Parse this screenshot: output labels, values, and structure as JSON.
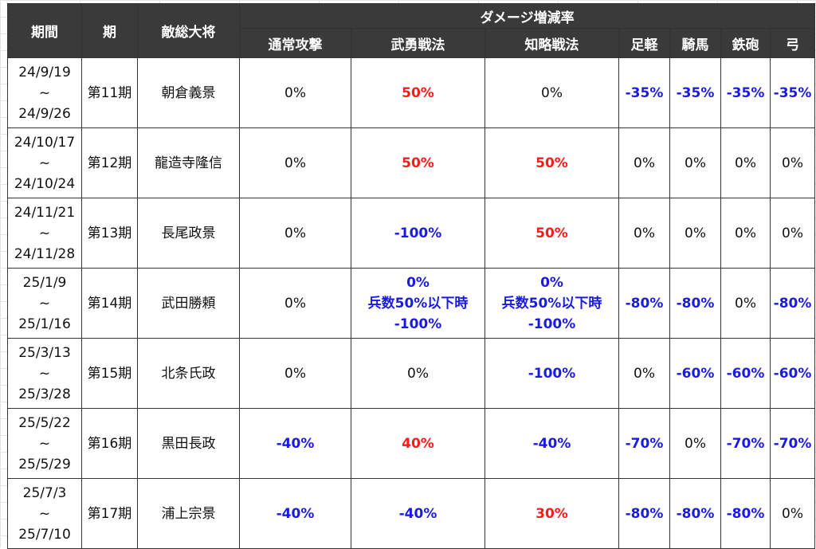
{
  "headers": {
    "period": "期間",
    "term": "期",
    "general": "敵総大将",
    "group": "ダメージ増減率",
    "cols": [
      "通常攻撃",
      "武勇戦法",
      "知略戦法",
      "足軽",
      "騎馬",
      "鉄砲",
      "弓"
    ]
  },
  "rows": [
    {
      "date_start": "24/9/19",
      "date_sep": "~",
      "date_end": "24/9/26",
      "term": "第11期",
      "general": "朝倉義景",
      "cells": [
        {
          "lines": [
            "0%"
          ],
          "color": "black"
        },
        {
          "lines": [
            "50%"
          ],
          "color": "red"
        },
        {
          "lines": [
            "0%"
          ],
          "color": "black"
        },
        {
          "lines": [
            "-35%"
          ],
          "color": "blue"
        },
        {
          "lines": [
            "-35%"
          ],
          "color": "blue"
        },
        {
          "lines": [
            "-35%"
          ],
          "color": "blue"
        },
        {
          "lines": [
            "-35%"
          ],
          "color": "blue"
        }
      ]
    },
    {
      "date_start": "24/10/17",
      "date_sep": "~",
      "date_end": "24/10/24",
      "term": "第12期",
      "general": "龍造寺隆信",
      "cells": [
        {
          "lines": [
            "0%"
          ],
          "color": "black"
        },
        {
          "lines": [
            "50%"
          ],
          "color": "red"
        },
        {
          "lines": [
            "50%"
          ],
          "color": "red"
        },
        {
          "lines": [
            "0%"
          ],
          "color": "black"
        },
        {
          "lines": [
            "0%"
          ],
          "color": "black"
        },
        {
          "lines": [
            "0%"
          ],
          "color": "black"
        },
        {
          "lines": [
            "0%"
          ],
          "color": "black"
        }
      ]
    },
    {
      "date_start": "24/11/21",
      "date_sep": "~",
      "date_end": "24/11/28",
      "term": "第13期",
      "general": "長尾政景",
      "cells": [
        {
          "lines": [
            "0%"
          ],
          "color": "black"
        },
        {
          "lines": [
            "-100%"
          ],
          "color": "blue"
        },
        {
          "lines": [
            "50%"
          ],
          "color": "red"
        },
        {
          "lines": [
            "0%"
          ],
          "color": "black"
        },
        {
          "lines": [
            "0%"
          ],
          "color": "black"
        },
        {
          "lines": [
            "0%"
          ],
          "color": "black"
        },
        {
          "lines": [
            "0%"
          ],
          "color": "black"
        }
      ]
    },
    {
      "date_start": "25/1/9",
      "date_sep": "~",
      "date_end": "25/1/16",
      "term": "第14期",
      "general": "武田勝頼",
      "cells": [
        {
          "lines": [
            "0%"
          ],
          "color": "black"
        },
        {
          "lines": [
            "0%",
            "兵数50%以下時",
            "-100%"
          ],
          "color": "blue"
        },
        {
          "lines": [
            "0%",
            "兵数50%以下時",
            "-100%"
          ],
          "color": "blue"
        },
        {
          "lines": [
            "-80%"
          ],
          "color": "blue"
        },
        {
          "lines": [
            "-80%"
          ],
          "color": "blue"
        },
        {
          "lines": [
            "0%"
          ],
          "color": "black"
        },
        {
          "lines": [
            "-80%"
          ],
          "color": "blue"
        }
      ]
    },
    {
      "date_start": "25/3/13",
      "date_sep": "~",
      "date_end": "25/3/28",
      "term": "第15期",
      "general": "北条氏政",
      "cells": [
        {
          "lines": [
            "0%"
          ],
          "color": "black"
        },
        {
          "lines": [
            "0%"
          ],
          "color": "black"
        },
        {
          "lines": [
            "-100%"
          ],
          "color": "blue"
        },
        {
          "lines": [
            "0%"
          ],
          "color": "black"
        },
        {
          "lines": [
            "-60%"
          ],
          "color": "blue"
        },
        {
          "lines": [
            "-60%"
          ],
          "color": "blue"
        },
        {
          "lines": [
            "-60%"
          ],
          "color": "blue"
        }
      ]
    },
    {
      "date_start": "25/5/22",
      "date_sep": "~",
      "date_end": "25/5/29",
      "term": "第16期",
      "general": "黒田長政",
      "cells": [
        {
          "lines": [
            "-40%"
          ],
          "color": "blue"
        },
        {
          "lines": [
            "40%"
          ],
          "color": "red"
        },
        {
          "lines": [
            "-40%"
          ],
          "color": "blue"
        },
        {
          "lines": [
            "-70%"
          ],
          "color": "blue"
        },
        {
          "lines": [
            "0%"
          ],
          "color": "black"
        },
        {
          "lines": [
            "-70%"
          ],
          "color": "blue"
        },
        {
          "lines": [
            "-70%"
          ],
          "color": "blue"
        }
      ]
    },
    {
      "date_start": "25/7/3",
      "date_sep": "~",
      "date_end": "25/7/10",
      "term": "第17期",
      "general": "浦上宗景",
      "cells": [
        {
          "lines": [
            "-40%"
          ],
          "color": "blue"
        },
        {
          "lines": [
            "-40%"
          ],
          "color": "blue"
        },
        {
          "lines": [
            "30%"
          ],
          "color": "red"
        },
        {
          "lines": [
            "-80%"
          ],
          "color": "blue"
        },
        {
          "lines": [
            "-80%"
          ],
          "color": "blue"
        },
        {
          "lines": [
            "-80%"
          ],
          "color": "blue"
        },
        {
          "lines": [
            "0%"
          ],
          "color": "black"
        }
      ]
    }
  ],
  "colors": {
    "header_bg": "#3a3a3a",
    "increase": "#ff1a1a",
    "decrease": "#1a1ae6",
    "neutral": "#111111"
  }
}
